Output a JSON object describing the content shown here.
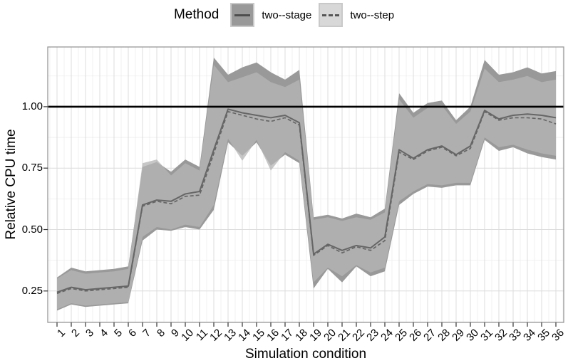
{
  "legend": {
    "title": "Method",
    "items": [
      {
        "label": "two--stage",
        "line_style": "solid"
      },
      {
        "label": "two--step",
        "line_style": "dashed"
      }
    ]
  },
  "chart_data": {
    "type": "line",
    "title": "",
    "xlabel": "Simulation condition",
    "ylabel": "Relative CPU time",
    "legend_position": "top",
    "grid": true,
    "x": [
      1,
      2,
      3,
      4,
      5,
      6,
      7,
      8,
      9,
      10,
      11,
      12,
      13,
      14,
      15,
      16,
      17,
      18,
      19,
      20,
      21,
      22,
      23,
      24,
      25,
      26,
      27,
      28,
      29,
      30,
      31,
      32,
      33,
      34,
      35,
      36
    ],
    "ylim": [
      0.122,
      1.243
    ],
    "yticks": [
      0.25,
      0.5,
      0.75,
      1.0
    ],
    "ytick_labels": [
      "0.25",
      "0.50",
      "0.75",
      "1.00"
    ],
    "yticks_minor": [
      0.125,
      0.375,
      0.625,
      0.875,
      1.125
    ],
    "reference_line_y": 1.0,
    "series": [
      {
        "name": "two--stage",
        "line_style": "solid",
        "values": [
          0.245,
          0.265,
          0.255,
          0.26,
          0.265,
          0.27,
          0.6,
          0.62,
          0.615,
          0.645,
          0.655,
          0.825,
          0.99,
          0.975,
          0.965,
          0.955,
          0.965,
          0.935,
          0.4,
          0.44,
          0.415,
          0.435,
          0.425,
          0.47,
          0.825,
          0.79,
          0.825,
          0.84,
          0.805,
          0.84,
          0.985,
          0.95,
          0.965,
          0.97,
          0.965,
          0.955
        ],
        "ribbon_low": [
          0.17,
          0.195,
          0.185,
          0.19,
          0.195,
          0.2,
          0.455,
          0.5,
          0.495,
          0.51,
          0.5,
          0.58,
          0.855,
          0.8,
          0.855,
          0.76,
          0.805,
          0.77,
          0.26,
          0.34,
          0.285,
          0.35,
          0.31,
          0.33,
          0.6,
          0.645,
          0.675,
          0.67,
          0.68,
          0.68,
          0.865,
          0.82,
          0.835,
          0.81,
          0.795,
          0.785
        ],
        "ribbon_high": [
          0.305,
          0.345,
          0.33,
          0.335,
          0.34,
          0.35,
          0.755,
          0.775,
          0.735,
          0.785,
          0.755,
          1.2,
          1.13,
          1.16,
          1.18,
          1.14,
          1.11,
          1.15,
          0.55,
          0.56,
          0.545,
          0.565,
          0.55,
          0.585,
          1.055,
          0.975,
          1.015,
          1.025,
          0.945,
          1.0,
          1.19,
          1.13,
          1.14,
          1.16,
          1.135,
          1.145
        ]
      },
      {
        "name": "two--step",
        "line_style": "dashed",
        "values": [
          0.24,
          0.26,
          0.25,
          0.255,
          0.26,
          0.265,
          0.595,
          0.615,
          0.605,
          0.635,
          0.64,
          0.81,
          0.98,
          0.965,
          0.95,
          0.94,
          0.955,
          0.925,
          0.395,
          0.435,
          0.405,
          0.43,
          0.415,
          0.455,
          0.815,
          0.785,
          0.82,
          0.835,
          0.8,
          0.83,
          0.98,
          0.945,
          0.955,
          0.955,
          0.95,
          0.93
        ],
        "ribbon_low": [
          0.175,
          0.2,
          0.19,
          0.195,
          0.2,
          0.205,
          0.47,
          0.51,
          0.5,
          0.52,
          0.51,
          0.6,
          0.87,
          0.78,
          0.865,
          0.74,
          0.815,
          0.78,
          0.285,
          0.345,
          0.31,
          0.355,
          0.325,
          0.345,
          0.615,
          0.655,
          0.685,
          0.68,
          0.69,
          0.69,
          0.875,
          0.835,
          0.845,
          0.825,
          0.81,
          0.8
        ],
        "ribbon_high": [
          0.3,
          0.335,
          0.32,
          0.325,
          0.33,
          0.34,
          0.77,
          0.785,
          0.72,
          0.77,
          0.74,
          1.17,
          1.1,
          1.12,
          1.14,
          1.1,
          1.08,
          1.11,
          0.54,
          0.55,
          0.535,
          0.55,
          0.54,
          0.57,
          1.03,
          0.955,
          0.995,
          1.005,
          0.93,
          0.98,
          1.155,
          1.1,
          1.11,
          1.125,
          1.1,
          1.11
        ]
      }
    ],
    "colors": {
      "two_stage_fill": "#999999",
      "two_step_fill": "#b6b6b6",
      "two_step_opacity": 0.76,
      "line": "#666666",
      "reference_line": "#000000",
      "grid_major": "#dcdcdc",
      "grid_minor": "#ededed",
      "panel_border": "#999999",
      "tick_mark": "#333333",
      "legend_key_step_fill": "#d8d8d8",
      "legend_key_border": "#c9c9c9"
    }
  }
}
